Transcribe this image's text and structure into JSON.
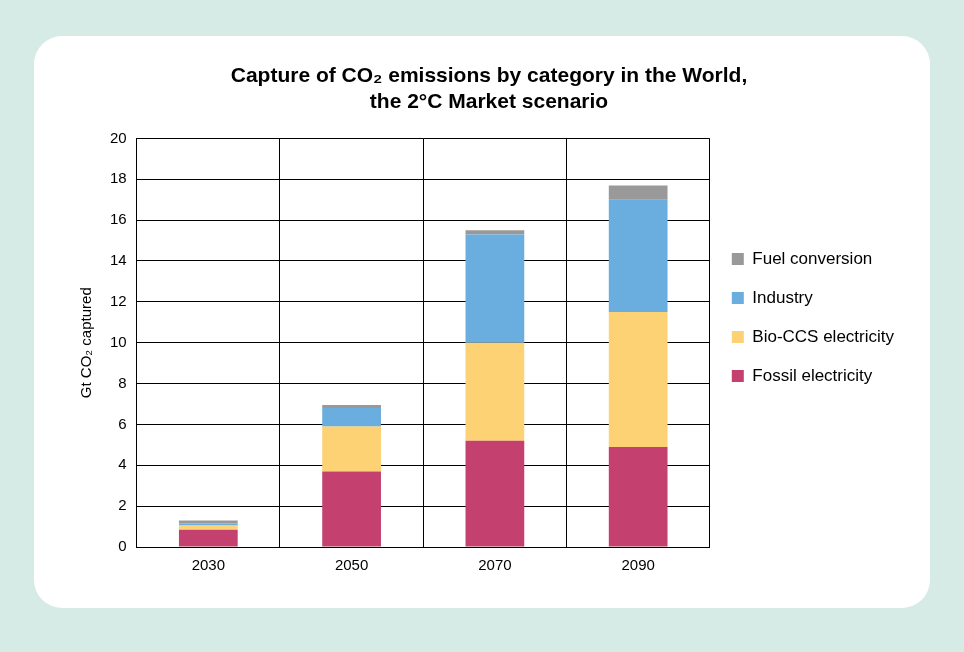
{
  "chart_data": {
    "type": "bar",
    "stacked": true,
    "title": "Capture of CO₂ emissions by category in the World,\nthe 2°C Market scenario",
    "y_label": "Gt CO₂ captured",
    "categories": [
      "2030",
      "2050",
      "2070",
      "2090"
    ],
    "series": [
      {
        "name": "Fossil electricity",
        "color": "#c4416f",
        "values": [
          0.85,
          3.7,
          5.2,
          4.9
        ]
      },
      {
        "name": "Bio-CCS electricity",
        "color": "#fcd274",
        "values": [
          0.2,
          2.2,
          4.8,
          6.6
        ]
      },
      {
        "name": "Industry",
        "color": "#6aaddf",
        "values": [
          0.1,
          0.9,
          5.3,
          5.5
        ]
      },
      {
        "name": "Fuel conversion",
        "color": "#999999",
        "values": [
          0.15,
          0.15,
          0.2,
          0.7
        ]
      }
    ],
    "ylim": [
      0,
      20
    ],
    "yticks": [
      0,
      2,
      4,
      6,
      8,
      10,
      12,
      14,
      16,
      18,
      20
    ],
    "grid": true,
    "legend": "right"
  }
}
